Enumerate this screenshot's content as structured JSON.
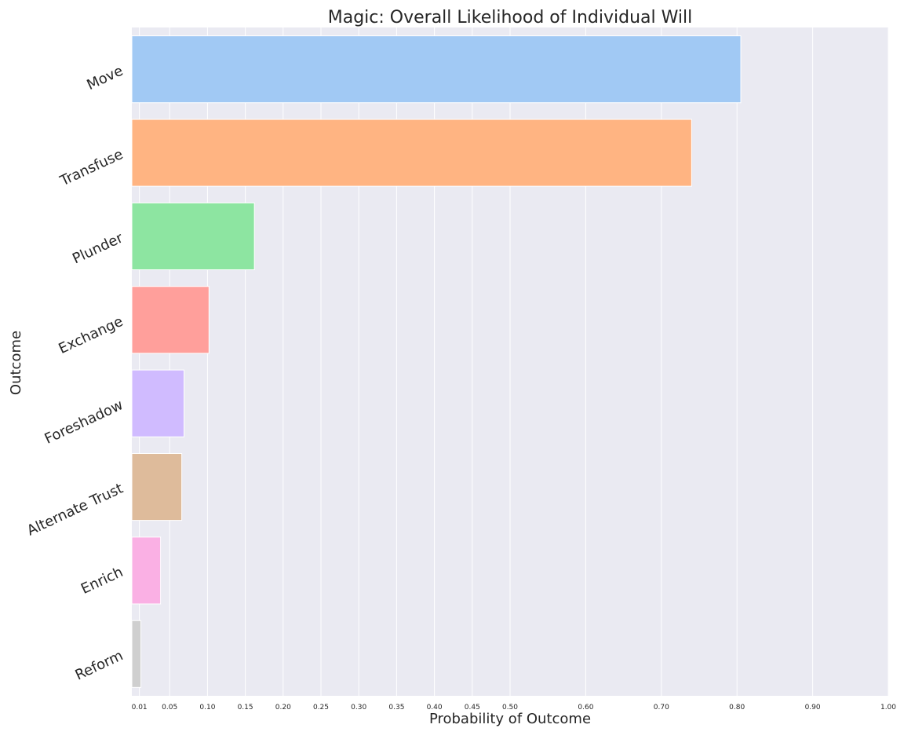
{
  "chart_data": {
    "type": "bar",
    "orientation": "horizontal",
    "title": "Magic: Overall Likelihood of Individual Will",
    "xlabel": "Probability of Outcome",
    "ylabel": "Outcome",
    "categories": [
      "Move",
      "Transfuse",
      "Plunder",
      "Exchange",
      "Foreshadow",
      "Alternate Trust",
      "Enrich",
      "Reform"
    ],
    "values": [
      0.805,
      0.74,
      0.162,
      0.102,
      0.069,
      0.066,
      0.038,
      0.012
    ],
    "colors": [
      "#a1c9f4",
      "#ffb482",
      "#8de5a1",
      "#ff9f9b",
      "#d0bbff",
      "#debb9b",
      "#fab0e4",
      "#cfcfcf"
    ],
    "xlim": [
      0,
      1.0
    ],
    "xticks": [
      0.01,
      0.05,
      0.1,
      0.15,
      0.2,
      0.25,
      0.3,
      0.35,
      0.4,
      0.45,
      0.5,
      0.6,
      0.7,
      0.8,
      0.9,
      1.0
    ],
    "xtick_labels": [
      "0.01",
      "0.05",
      "0.10",
      "0.15",
      "0.20",
      "0.25",
      "0.30",
      "0.35",
      "0.40",
      "0.45",
      "0.50",
      "0.60",
      "0.70",
      "0.80",
      "0.90",
      "1.00"
    ],
    "grid": true,
    "background": "#eaeaf2",
    "gridline_color": "#ffffff"
  }
}
